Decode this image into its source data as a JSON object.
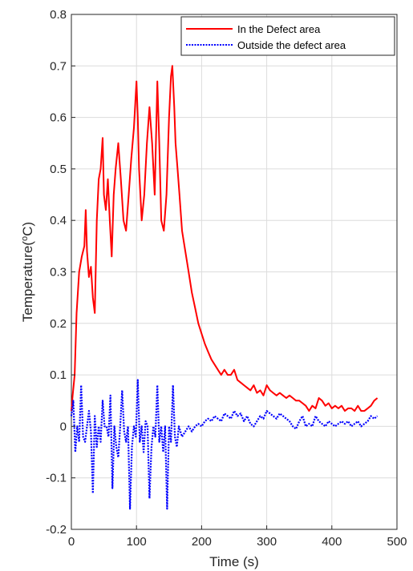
{
  "chart_data": {
    "type": "line",
    "title": "",
    "xlabel": "Time (s)",
    "ylabel_parts": [
      "Temperature(",
      "o",
      "C)"
    ],
    "xlim": [
      0,
      500
    ],
    "ylim": [
      -0.2,
      0.8
    ],
    "xticks": [
      0,
      100,
      200,
      300,
      400,
      500
    ],
    "yticks": [
      -0.2,
      -0.1,
      0,
      0.1,
      0.2,
      0.3,
      0.4,
      0.5,
      0.6,
      0.7,
      0.8
    ],
    "grid": true,
    "legend": "top-right",
    "series": [
      {
        "name": "In the Defect area",
        "color": "#ff0000",
        "style": "solid",
        "x": [
          0,
          2,
          5,
          8,
          12,
          16,
          20,
          22,
          24,
          27,
          30,
          33,
          36,
          39,
          42,
          45,
          48,
          50,
          53,
          56,
          59,
          62,
          65,
          68,
          72,
          76,
          80,
          84,
          88,
          92,
          96,
          100,
          102,
          104,
          108,
          112,
          116,
          120,
          124,
          128,
          132,
          135,
          138,
          142,
          146,
          150,
          153,
          155,
          158,
          160,
          163,
          166,
          170,
          175,
          180,
          185,
          190,
          195,
          200,
          205,
          210,
          215,
          220,
          225,
          230,
          235,
          240,
          245,
          250,
          255,
          260,
          265,
          270,
          275,
          280,
          285,
          290,
          295,
          300,
          305,
          310,
          315,
          320,
          325,
          330,
          335,
          340,
          345,
          350,
          355,
          360,
          365,
          370,
          375,
          380,
          385,
          390,
          395,
          400,
          405,
          410,
          415,
          420,
          425,
          430,
          435,
          440,
          445,
          450,
          455,
          460,
          465,
          470
        ],
        "y": [
          0.03,
          0.06,
          0.1,
          0.22,
          0.3,
          0.33,
          0.35,
          0.42,
          0.34,
          0.29,
          0.31,
          0.25,
          0.22,
          0.4,
          0.48,
          0.5,
          0.56,
          0.45,
          0.42,
          0.48,
          0.4,
          0.33,
          0.45,
          0.5,
          0.55,
          0.48,
          0.4,
          0.38,
          0.45,
          0.52,
          0.58,
          0.67,
          0.6,
          0.5,
          0.4,
          0.45,
          0.55,
          0.62,
          0.55,
          0.45,
          0.67,
          0.55,
          0.4,
          0.38,
          0.45,
          0.6,
          0.68,
          0.7,
          0.62,
          0.55,
          0.5,
          0.45,
          0.38,
          0.34,
          0.3,
          0.26,
          0.23,
          0.2,
          0.18,
          0.16,
          0.145,
          0.13,
          0.12,
          0.11,
          0.1,
          0.11,
          0.1,
          0.1,
          0.11,
          0.09,
          0.085,
          0.08,
          0.075,
          0.07,
          0.08,
          0.065,
          0.07,
          0.06,
          0.08,
          0.07,
          0.065,
          0.06,
          0.065,
          0.06,
          0.055,
          0.06,
          0.055,
          0.05,
          0.05,
          0.045,
          0.04,
          0.03,
          0.04,
          0.035,
          0.055,
          0.05,
          0.04,
          0.045,
          0.035,
          0.04,
          0.035,
          0.04,
          0.03,
          0.035,
          0.035,
          0.03,
          0.04,
          0.03,
          0.03,
          0.035,
          0.04,
          0.05,
          0.055
        ]
      },
      {
        "name": "Outside the defect area",
        "color": "#0000ff",
        "style": "dotted",
        "x": [
          0,
          3,
          6,
          9,
          12,
          15,
          18,
          21,
          24,
          27,
          30,
          33,
          36,
          39,
          42,
          45,
          48,
          51,
          54,
          57,
          60,
          63,
          66,
          69,
          72,
          75,
          78,
          81,
          84,
          87,
          90,
          93,
          96,
          99,
          102,
          105,
          108,
          111,
          114,
          117,
          120,
          123,
          126,
          129,
          132,
          135,
          138,
          141,
          144,
          147,
          150,
          153,
          156,
          159,
          162,
          165,
          170,
          175,
          180,
          185,
          190,
          195,
          200,
          205,
          210,
          215,
          220,
          225,
          230,
          235,
          240,
          245,
          250,
          255,
          260,
          265,
          270,
          275,
          280,
          285,
          290,
          295,
          300,
          305,
          310,
          315,
          320,
          325,
          330,
          335,
          340,
          345,
          350,
          355,
          360,
          365,
          370,
          375,
          380,
          385,
          390,
          395,
          400,
          405,
          410,
          415,
          420,
          425,
          430,
          435,
          440,
          445,
          450,
          455,
          460,
          465,
          470
        ],
        "y": [
          0.02,
          0.05,
          -0.05,
          0.0,
          -0.03,
          0.08,
          -0.02,
          -0.03,
          0.0,
          0.03,
          -0.01,
          -0.13,
          0.02,
          -0.04,
          0.0,
          -0.03,
          0.05,
          0.0,
          0.0,
          -0.02,
          0.06,
          -0.12,
          0.0,
          -0.04,
          -0.06,
          0.0,
          0.07,
          -0.01,
          -0.03,
          0.0,
          -0.16,
          -0.04,
          0.0,
          -0.02,
          0.09,
          -0.03,
          0.0,
          -0.05,
          0.01,
          0.0,
          -0.14,
          -0.04,
          0.0,
          -0.02,
          0.08,
          -0.03,
          0.0,
          -0.05,
          0.0,
          -0.16,
          0.0,
          -0.03,
          0.08,
          -0.02,
          -0.04,
          0.0,
          -0.02,
          -0.01,
          0.0,
          -0.01,
          0.0,
          0.005,
          0.0,
          0.01,
          0.015,
          0.01,
          0.02,
          0.015,
          0.01,
          0.025,
          0.02,
          0.015,
          0.03,
          0.02,
          0.025,
          0.01,
          0.02,
          0.005,
          0.0,
          0.01,
          0.02,
          0.015,
          0.03,
          0.025,
          0.02,
          0.015,
          0.025,
          0.02,
          0.015,
          0.01,
          0.0,
          -0.005,
          0.01,
          0.02,
          0.0,
          0.005,
          0.0,
          0.02,
          0.01,
          0.005,
          0.0,
          0.01,
          0.005,
          0.0,
          0.005,
          0.01,
          0.005,
          0.01,
          0.0,
          0.005,
          0.01,
          0.0,
          0.005,
          0.01,
          0.02,
          0.015,
          0.02
        ]
      }
    ]
  }
}
